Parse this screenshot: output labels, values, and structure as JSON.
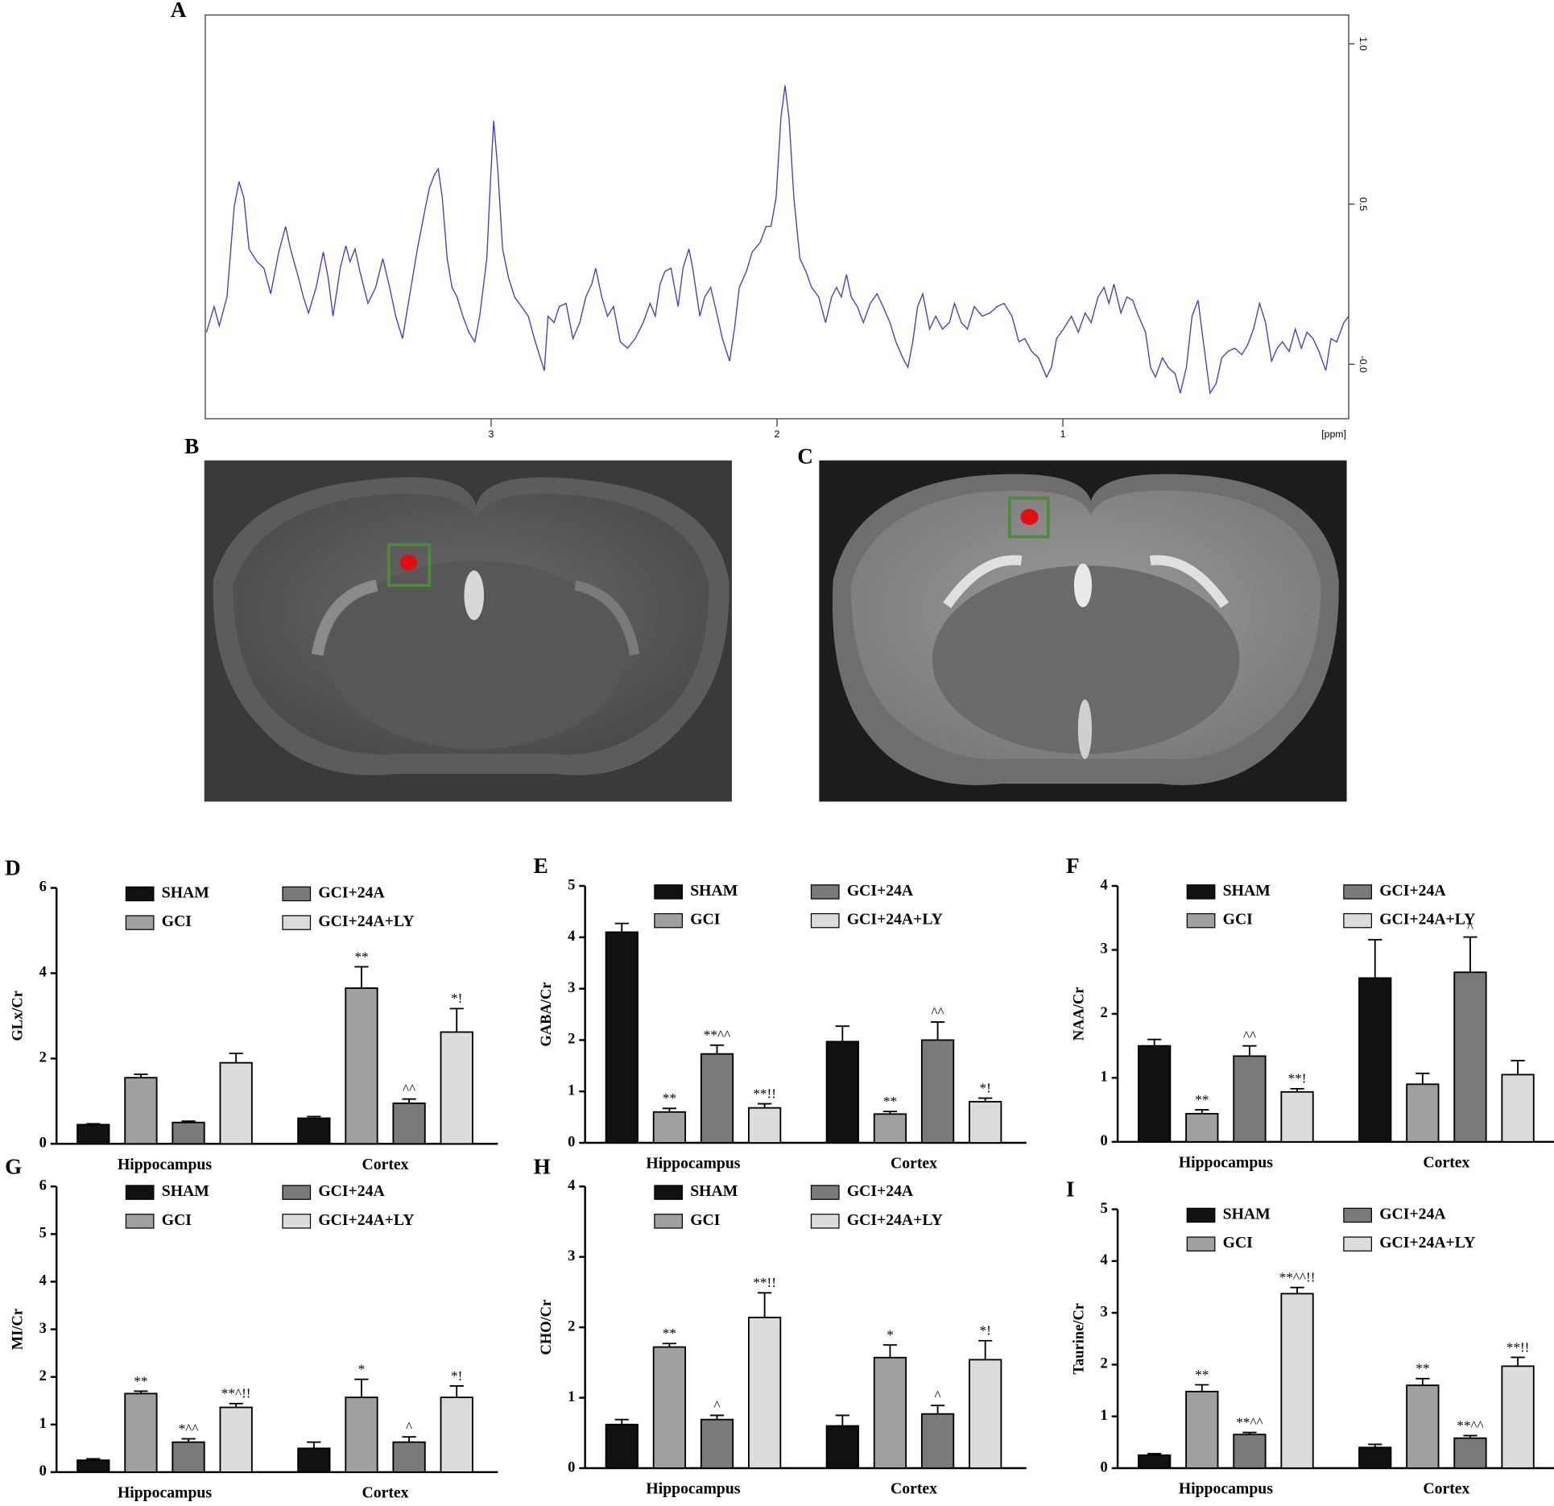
{
  "chart_data": [
    {
      "type": "line",
      "label": "A",
      "x_label": "[ppm]",
      "xlim": [
        4.0,
        0.0
      ],
      "xticks": [
        3,
        2,
        1
      ],
      "ylim": [
        -0.17,
        1.09
      ],
      "yticks": [
        {
          "value": 1.0,
          "label": "1.0"
        },
        0.5,
        {
          "value": 0,
          "label": "-0.0"
        }
      ],
      "x": [
        3.996,
        3.969,
        3.951,
        3.924,
        3.899,
        3.882,
        3.865,
        3.847,
        3.819,
        3.795,
        3.771,
        3.743,
        3.719,
        3.702,
        3.674,
        3.657,
        3.639,
        3.612,
        3.587,
        3.57,
        3.553,
        3.528,
        3.508,
        3.494,
        3.476,
        3.459,
        3.431,
        3.404,
        3.379,
        3.355,
        3.334,
        3.31,
        3.286,
        3.258,
        3.23,
        3.216,
        3.199,
        3.185,
        3.171,
        3.154,
        3.137,
        3.119,
        3.099,
        3.078,
        3.057,
        3.04,
        3.015,
        3.002,
        2.991,
        2.977,
        2.96,
        2.939,
        2.918,
        2.894,
        2.87,
        2.849,
        2.828,
        2.814,
        2.801,
        2.78,
        2.762,
        2.738,
        2.714,
        2.69,
        2.669,
        2.648,
        2.634,
        2.613,
        2.593,
        2.572,
        2.548,
        2.523,
        2.496,
        2.468,
        2.444,
        2.426,
        2.409,
        2.392,
        2.371,
        2.346,
        2.329,
        2.308,
        2.295,
        2.27,
        2.253,
        2.232,
        2.211,
        2.191,
        2.166,
        2.149,
        2.132,
        2.107,
        2.087,
        2.059,
        2.038,
        2.021,
        2.003,
        1.986,
        1.972,
        1.958,
        1.941,
        1.92,
        1.899,
        1.879,
        1.854,
        1.83,
        1.809,
        1.792,
        1.775,
        1.757,
        1.74,
        1.719,
        1.698,
        1.674,
        1.65,
        1.629,
        1.605,
        1.584,
        1.56,
        1.542,
        1.525,
        1.508,
        1.49,
        1.466,
        1.445,
        1.421,
        1.397,
        1.379,
        1.355,
        1.334,
        1.31,
        1.282,
        1.255,
        1.23,
        1.206,
        1.178,
        1.154,
        1.133,
        1.109,
        1.085,
        1.057,
        1.04,
        1.022,
        0.998,
        0.97,
        0.946,
        0.922,
        0.901,
        0.877,
        0.856,
        0.839,
        0.821,
        0.797,
        0.776,
        0.756,
        0.735,
        0.711,
        0.693,
        0.676,
        0.652,
        0.631,
        0.607,
        0.589,
        0.568,
        0.548,
        0.527,
        0.51,
        0.485,
        0.464,
        0.444,
        0.423,
        0.399,
        0.374,
        0.354,
        0.333,
        0.312,
        0.291,
        0.27,
        0.25,
        0.232,
        0.208,
        0.187,
        0.166,
        0.146,
        0.125,
        0.104,
        0.08,
        0.062,
        0.042,
        0.017,
        0.0
      ],
      "series": [
        {
          "color": "#4040c0",
          "values": [
            0.1,
            0.18,
            0.12,
            0.21,
            0.49,
            0.57,
            0.52,
            0.36,
            0.32,
            0.3,
            0.22,
            0.35,
            0.43,
            0.36,
            0.27,
            0.21,
            0.16,
            0.24,
            0.35,
            0.27,
            0.15,
            0.3,
            0.37,
            0.32,
            0.36,
            0.29,
            0.19,
            0.24,
            0.33,
            0.24,
            0.15,
            0.08,
            0.21,
            0.36,
            0.49,
            0.55,
            0.59,
            0.61,
            0.52,
            0.33,
            0.24,
            0.21,
            0.15,
            0.1,
            0.07,
            0.15,
            0.33,
            0.58,
            0.76,
            0.61,
            0.36,
            0.27,
            0.21,
            0.18,
            0.15,
            0.08,
            0.02,
            -0.02,
            0.15,
            0.13,
            0.18,
            0.19,
            0.08,
            0.13,
            0.21,
            0.25,
            0.3,
            0.21,
            0.15,
            0.18,
            0.07,
            0.05,
            0.08,
            0.13,
            0.19,
            0.15,
            0.25,
            0.29,
            0.3,
            0.18,
            0.3,
            0.36,
            0.3,
            0.15,
            0.21,
            0.24,
            0.16,
            0.08,
            0.01,
            0.11,
            0.24,
            0.29,
            0.35,
            0.38,
            0.43,
            0.43,
            0.52,
            0.77,
            0.87,
            0.77,
            0.52,
            0.33,
            0.29,
            0.24,
            0.21,
            0.13,
            0.21,
            0.24,
            0.21,
            0.28,
            0.21,
            0.18,
            0.13,
            0.19,
            0.22,
            0.18,
            0.13,
            0.07,
            0.02,
            -0.01,
            0.07,
            0.18,
            0.22,
            0.11,
            0.15,
            0.11,
            0.13,
            0.19,
            0.13,
            0.11,
            0.18,
            0.15,
            0.16,
            0.18,
            0.19,
            0.15,
            0.07,
            0.08,
            0.04,
            0.02,
            -0.04,
            -0.01,
            0.08,
            0.11,
            0.15,
            0.1,
            0.16,
            0.13,
            0.21,
            0.24,
            0.19,
            0.25,
            0.16,
            0.21,
            0.2,
            0.15,
            0.1,
            -0.01,
            -0.04,
            0.02,
            -0.01,
            -0.03,
            -0.09,
            -0.01,
            0.15,
            0.2,
            0.08,
            -0.09,
            -0.06,
            0.02,
            0.04,
            0.05,
            0.03,
            0.06,
            0.11,
            0.19,
            0.13,
            0.01,
            0.05,
            0.07,
            0.04,
            0.11,
            0.05,
            0.1,
            0.08,
            0.04,
            -0.02,
            0.08,
            0.07,
            0.13,
            0.15
          ]
        }
      ]
    },
    {
      "type": "bar",
      "label": "D",
      "y_label": "GLx/Cr",
      "categories": [
        "Hippocampus",
        "Cortex"
      ],
      "ylim": [
        0,
        6
      ],
      "yticks": [
        0,
        2,
        4,
        6
      ],
      "series": [
        {
          "name": "SHAM",
          "color": "#111111",
          "values": [
            0.45,
            0.6
          ],
          "errors": [
            0.02,
            0.04
          ],
          "annotations": [
            null,
            null
          ]
        },
        {
          "name": "GCI",
          "color": "#a0a0a0",
          "values": [
            1.55,
            3.65
          ],
          "errors": [
            0.08,
            0.5
          ],
          "annotations": [
            null,
            "**"
          ]
        },
        {
          "name": "GCI+24A",
          "color": "#7a7a7a",
          "values": [
            0.5,
            0.95
          ],
          "errors": [
            0.03,
            0.1
          ],
          "annotations": [
            null,
            "^^"
          ]
        },
        {
          "name": "GCI+24A+LY",
          "color": "#dcdcdc",
          "values": [
            1.9,
            2.62
          ],
          "errors": [
            0.22,
            0.55
          ],
          "annotations": [
            null,
            "*!"
          ]
        }
      ]
    },
    {
      "type": "bar",
      "label": "E",
      "y_label": "GABA/Cr",
      "categories": [
        "Hippocampus",
        "Cortex"
      ],
      "ylim": [
        0,
        5
      ],
      "yticks": [
        0,
        1,
        2,
        3,
        4,
        5
      ],
      "series": [
        {
          "name": "SHAM",
          "color": "#111111",
          "values": [
            4.1,
            1.97
          ],
          "errors": [
            0.17,
            0.3
          ],
          "annotations": [
            null,
            null
          ]
        },
        {
          "name": "GCI",
          "color": "#a0a0a0",
          "values": [
            0.6,
            0.56
          ],
          "errors": [
            0.07,
            0.05
          ],
          "annotations": [
            "**",
            "**"
          ]
        },
        {
          "name": "GCI+24A",
          "color": "#7a7a7a",
          "values": [
            1.73,
            2.0
          ],
          "errors": [
            0.17,
            0.35
          ],
          "annotations": [
            "**^^",
            "^^"
          ]
        },
        {
          "name": "GCI+24A+LY",
          "color": "#dcdcdc",
          "values": [
            0.68,
            0.8
          ],
          "errors": [
            0.08,
            0.07
          ],
          "annotations": [
            "**!!",
            "*!"
          ]
        }
      ]
    },
    {
      "type": "bar",
      "label": "F",
      "y_label": "NAA/Cr",
      "categories": [
        "Hippocampus",
        "Cortex"
      ],
      "ylim": [
        0,
        4
      ],
      "yticks": [
        0,
        1,
        2,
        3,
        4
      ],
      "series": [
        {
          "name": "SHAM",
          "color": "#111111",
          "values": [
            1.5,
            2.56
          ],
          "errors": [
            0.1,
            0.6
          ],
          "annotations": [
            null,
            null
          ]
        },
        {
          "name": "GCI",
          "color": "#a0a0a0",
          "values": [
            0.44,
            0.9
          ],
          "errors": [
            0.06,
            0.17
          ],
          "annotations": [
            "**",
            null
          ]
        },
        {
          "name": "GCI+24A",
          "color": "#7a7a7a",
          "values": [
            1.34,
            2.65
          ],
          "errors": [
            0.16,
            0.55
          ],
          "annotations": [
            "^^",
            "^"
          ]
        },
        {
          "name": "GCI+24A+LY",
          "color": "#dcdcdc",
          "values": [
            0.78,
            1.05
          ],
          "errors": [
            0.05,
            0.22
          ],
          "annotations": [
            "**!",
            null
          ]
        }
      ]
    },
    {
      "type": "bar",
      "label": "G",
      "y_label": "MI/Cr",
      "categories": [
        "Hippocampus",
        "Cortex"
      ],
      "ylim": [
        0,
        6
      ],
      "yticks": [
        0,
        1,
        2,
        3,
        4,
        5,
        6
      ],
      "series": [
        {
          "name": "SHAM",
          "color": "#111111",
          "values": [
            0.25,
            0.5
          ],
          "errors": [
            0.03,
            0.13
          ],
          "annotations": [
            null,
            null
          ]
        },
        {
          "name": "GCI",
          "color": "#a0a0a0",
          "values": [
            1.65,
            1.57
          ],
          "errors": [
            0.05,
            0.38
          ],
          "annotations": [
            "**",
            "*"
          ]
        },
        {
          "name": "GCI+24A",
          "color": "#7a7a7a",
          "values": [
            0.63,
            0.63
          ],
          "errors": [
            0.07,
            0.11
          ],
          "annotations": [
            "*^^",
            "^"
          ]
        },
        {
          "name": "GCI+24A+LY",
          "color": "#dcdcdc",
          "values": [
            1.36,
            1.57
          ],
          "errors": [
            0.08,
            0.24
          ],
          "annotations": [
            "**^!!",
            "*!"
          ]
        }
      ]
    },
    {
      "type": "bar",
      "label": "H",
      "y_label": "CHO/Cr",
      "categories": [
        "Hippocampus",
        "Cortex"
      ],
      "ylim": [
        0,
        4
      ],
      "yticks": [
        0,
        1,
        2,
        3,
        4
      ],
      "series": [
        {
          "name": "SHAM",
          "color": "#111111",
          "values": [
            0.62,
            0.6
          ],
          "errors": [
            0.07,
            0.15
          ],
          "annotations": [
            null,
            null
          ]
        },
        {
          "name": "GCI",
          "color": "#a0a0a0",
          "values": [
            1.72,
            1.57
          ],
          "errors": [
            0.05,
            0.18
          ],
          "annotations": [
            "**",
            "*"
          ]
        },
        {
          "name": "GCI+24A",
          "color": "#7a7a7a",
          "values": [
            0.69,
            0.77
          ],
          "errors": [
            0.06,
            0.12
          ],
          "annotations": [
            "^",
            "^"
          ]
        },
        {
          "name": "GCI+24A+LY",
          "color": "#dcdcdc",
          "values": [
            2.14,
            1.54
          ],
          "errors": [
            0.35,
            0.27
          ],
          "annotations": [
            "**!!",
            "*!"
          ]
        }
      ]
    },
    {
      "type": "bar",
      "label": "I",
      "y_label": "Taurine/Cr",
      "categories": [
        "Hippocampus",
        "Cortex"
      ],
      "ylim": [
        0,
        5
      ],
      "yticks": [
        0,
        1,
        2,
        3,
        4,
        5
      ],
      "series": [
        {
          "name": "SHAM",
          "color": "#111111",
          "values": [
            0.25,
            0.4
          ],
          "errors": [
            0.03,
            0.06
          ],
          "annotations": [
            null,
            null
          ]
        },
        {
          "name": "GCI",
          "color": "#a0a0a0",
          "values": [
            1.48,
            1.6
          ],
          "errors": [
            0.13,
            0.13
          ],
          "annotations": [
            "**",
            "**"
          ]
        },
        {
          "name": "GCI+24A",
          "color": "#7a7a7a",
          "values": [
            0.65,
            0.58
          ],
          "errors": [
            0.04,
            0.05
          ],
          "annotations": [
            "**^^",
            "**^^"
          ]
        },
        {
          "name": "GCI+24A+LY",
          "color": "#dcdcdc",
          "values": [
            3.37,
            1.97
          ],
          "errors": [
            0.12,
            0.17
          ],
          "annotations": [
            "**^^!!",
            "**!!"
          ]
        }
      ]
    }
  ],
  "images": [
    {
      "label": "B"
    },
    {
      "label": "C"
    }
  ]
}
